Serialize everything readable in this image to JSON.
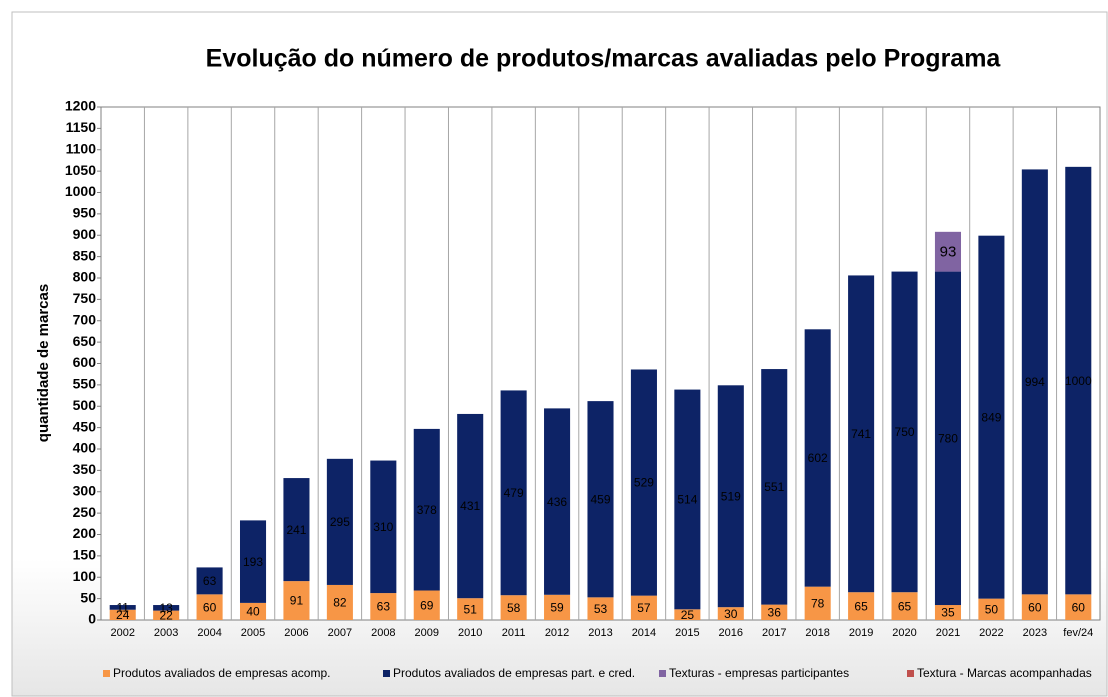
{
  "chart_data": {
    "type": "stacked_bar",
    "title": "Evolução do número de produtos/marcas avaliadas pelo Programa",
    "y_label": "quantidade de marcas",
    "categories": [
      "2002",
      "2003",
      "2004",
      "2005",
      "2006",
      "2007",
      "2008",
      "2009",
      "2010",
      "2011",
      "2012",
      "2013",
      "2014",
      "2015",
      "2016",
      "2017",
      "2018",
      "2019",
      "2020",
      "2021",
      "2022",
      "2023",
      "fev/24"
    ],
    "series": [
      {
        "name": "Produtos avaliados de empresas acomp.",
        "color": "#f79646",
        "label_color": "#000000",
        "values": [
          24,
          22,
          60,
          40,
          91,
          82,
          63,
          69,
          51,
          58,
          59,
          53,
          57,
          25,
          30,
          36,
          78,
          65,
          65,
          35,
          50,
          60,
          60
        ]
      },
      {
        "name": "Produtos avaliados de empresas part. e cred.",
        "color": "#0d2366",
        "label_color": "#ffffff",
        "values": [
          11,
          13,
          63,
          193,
          241,
          295,
          310,
          378,
          431,
          479,
          436,
          459,
          529,
          514,
          519,
          551,
          602,
          741,
          750,
          780,
          849,
          994,
          1000
        ]
      },
      {
        "name": "Texturas - empresas participantes",
        "color": "#8064a2",
        "label_color": "#000000",
        "values": [
          null,
          null,
          null,
          null,
          null,
          null,
          null,
          null,
          null,
          null,
          null,
          null,
          null,
          null,
          null,
          null,
          null,
          null,
          null,
          93,
          null,
          null,
          null
        ]
      },
      {
        "name": "Textura - Marcas acompanhadas",
        "color": "#c0504d",
        "label_color": "#000000",
        "values": [
          null,
          null,
          null,
          null,
          null,
          null,
          null,
          null,
          null,
          null,
          null,
          null,
          null,
          null,
          null,
          null,
          null,
          null,
          null,
          null,
          null,
          null,
          null
        ]
      }
    ],
    "ylim": [
      0,
      1200
    ],
    "yticks": [
      0,
      50,
      100,
      150,
      200,
      250,
      300,
      350,
      400,
      450,
      500,
      550,
      600,
      650,
      700,
      750,
      800,
      850,
      900,
      950,
      1000,
      1050,
      1100,
      1150,
      1200
    ],
    "grid": true
  }
}
